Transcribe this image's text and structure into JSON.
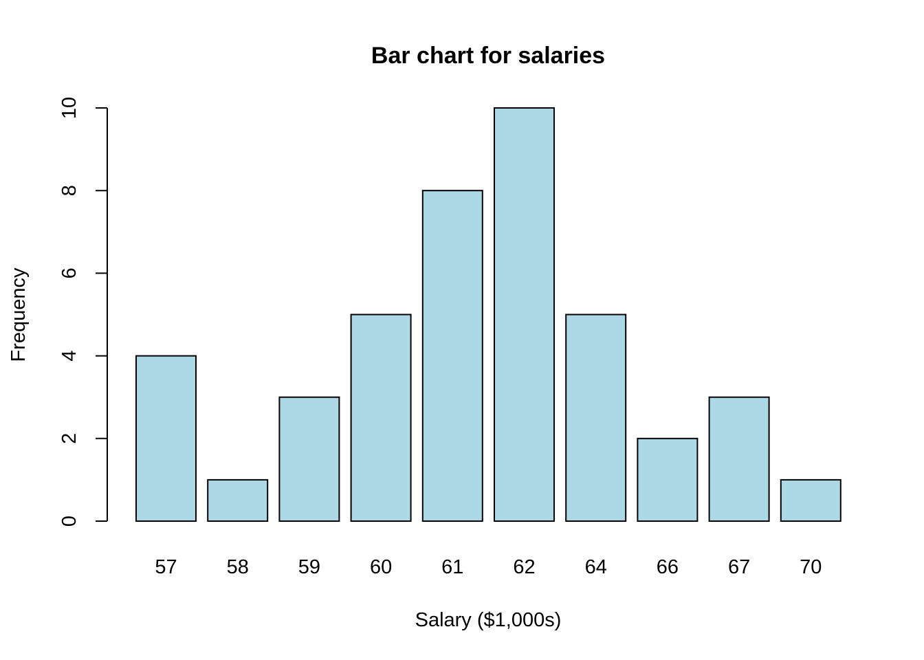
{
  "chart_data": {
    "type": "bar",
    "title": "Bar chart for salaries",
    "xlabel": "Salary ($1,000s)",
    "ylabel": "Frequency",
    "categories": [
      "57",
      "58",
      "59",
      "60",
      "61",
      "62",
      "64",
      "66",
      "67",
      "70"
    ],
    "values": [
      4,
      1,
      3,
      5,
      8,
      10,
      5,
      2,
      3,
      1
    ],
    "ylim": [
      0,
      10
    ],
    "yticks": [
      "0",
      "2",
      "4",
      "6",
      "8",
      "10"
    ],
    "bar_color": "#ADD8E6",
    "grid": false
  }
}
